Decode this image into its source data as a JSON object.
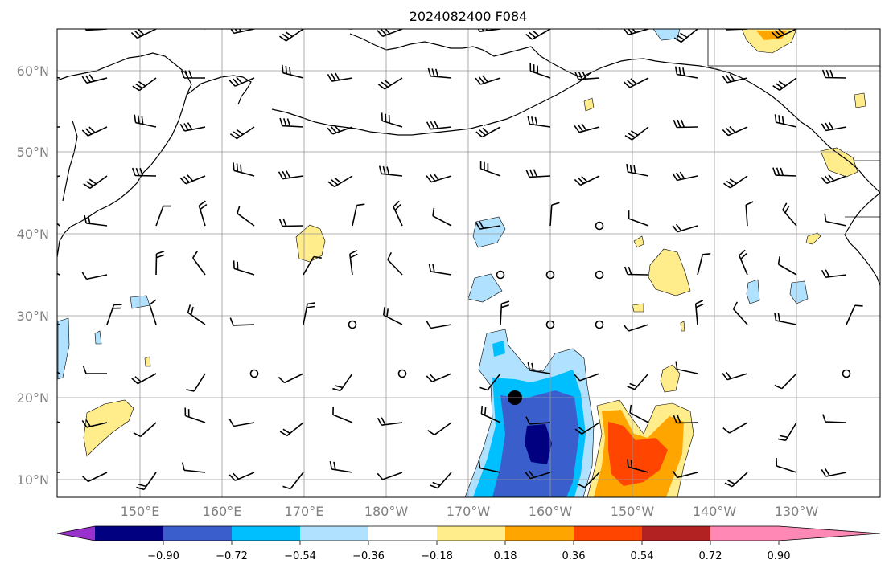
{
  "title": "2024082400 F084",
  "map": {
    "lat_labels": [
      "60°N",
      "50°N",
      "40°N",
      "30°N",
      "20°N",
      "10°N"
    ],
    "lon_labels": [
      "150°E",
      "160°E",
      "170°E",
      "180°W",
      "170°W",
      "160°W",
      "150°W",
      "140°W",
      "130°W"
    ]
  },
  "colorbar": {
    "ticks": [
      "−0.90",
      "−0.72",
      "−0.54",
      "−0.36",
      "−0.18",
      "0.18",
      "0.36",
      "0.54",
      "0.72",
      "0.90"
    ],
    "colors": [
      "#9932cc",
      "#000080",
      "#3a5fcd",
      "#00bfff",
      "#b0e2ff",
      "#ffffff",
      "#ffec8b",
      "#ffa500",
      "#ff4500",
      "#b22222",
      "#ff88b4"
    ]
  }
}
